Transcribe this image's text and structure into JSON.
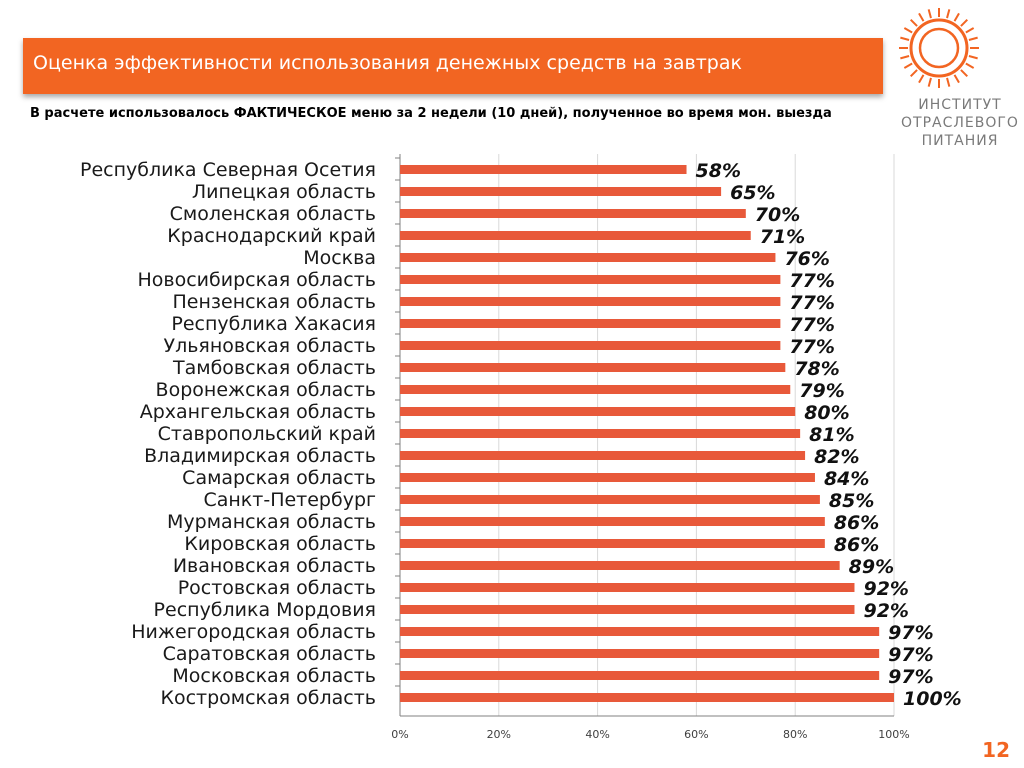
{
  "header": {
    "title": "Оценка эффективности использования денежных средств на завтрак",
    "subtitle": "В расчете использовалось ФАКТИЧЕСКОЕ меню за 2 недели (10 дней), полученное во время мон. выезда"
  },
  "logo": {
    "line1": "ИНСТИТУТ",
    "line2": "ОТРАСЛЕВОГО",
    "line3": "ПИТАНИЯ"
  },
  "page_number": "12",
  "colors": {
    "accent": "#f26522",
    "bar": "#e8593a",
    "grid": "#d9d9d9",
    "axis": "#808080"
  },
  "chart_data": {
    "type": "bar",
    "orientation": "horizontal",
    "categories": [
      "Республика Северная Осетия",
      "Липецкая область",
      "Смоленская область",
      "Краснодарский край",
      "Москва",
      "Новосибирская область",
      "Пензенская область",
      "Республика Хакасия",
      "Ульяновская область",
      "Тамбовская область",
      "Воронежская область",
      "Архангельская область",
      "Ставропольский край",
      "Владимирская область",
      "Самарская область",
      "Санкт-Петербург",
      "Мурманская область",
      "Кировская область",
      "Ивановская область",
      "Ростовская область",
      "Республика Мордовия",
      "Нижегородская область",
      "Саратовская область",
      "Московская область",
      "Костромская область"
    ],
    "values": [
      58,
      65,
      70,
      71,
      76,
      77,
      77,
      77,
      77,
      78,
      79,
      80,
      81,
      82,
      84,
      85,
      86,
      86,
      89,
      92,
      92,
      97,
      97,
      97,
      100
    ],
    "value_labels": [
      "58%",
      "65%",
      "70%",
      "71%",
      "76%",
      "77%",
      "77%",
      "77%",
      "77%",
      "78%",
      "79%",
      "80%",
      "81%",
      "82%",
      "84%",
      "85%",
      "86%",
      "86%",
      "89%",
      "92%",
      "92%",
      "97%",
      "97%",
      "97%",
      "100%"
    ],
    "xlim": [
      0,
      100
    ],
    "xticks": [
      "0%",
      "20%",
      "40%",
      "60%",
      "80%",
      "100%"
    ],
    "xtick_values": [
      0,
      20,
      40,
      60,
      80,
      100
    ],
    "grid": true,
    "title": "",
    "xlabel": "",
    "ylabel": ""
  }
}
